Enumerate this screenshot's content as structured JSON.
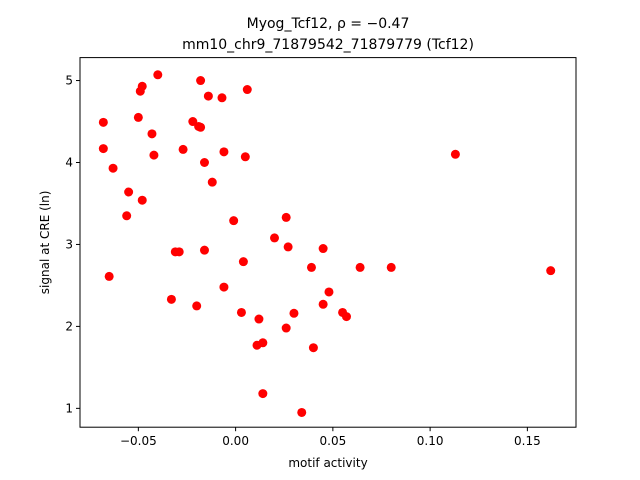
{
  "chart_data": {
    "type": "scatter",
    "title_line1": "Myog_Tcf12, ρ = −0.47",
    "title_line2": "mm10_chr9_71879542_71879779 (Tcf12)",
    "xlabel": "motif activity",
    "ylabel": "signal at CRE (ln)",
    "xlim": [
      -0.08,
      0.175
    ],
    "ylim": [
      0.77,
      5.28
    ],
    "xticks": [
      -0.05,
      0.0,
      0.05,
      0.1,
      0.15
    ],
    "xtick_labels": [
      "−0.05",
      "0.00",
      "0.05",
      "0.10",
      "0.15"
    ],
    "yticks": [
      1,
      2,
      3,
      4,
      5
    ],
    "ytick_labels": [
      "1",
      "2",
      "3",
      "4",
      "5"
    ],
    "grid": false,
    "legend": "none",
    "marker_color": "#ff0000",
    "points": [
      {
        "x": -0.068,
        "y": 4.49
      },
      {
        "x": -0.068,
        "y": 4.17
      },
      {
        "x": -0.065,
        "y": 2.61
      },
      {
        "x": -0.063,
        "y": 3.93
      },
      {
        "x": -0.056,
        "y": 3.35
      },
      {
        "x": -0.055,
        "y": 3.64
      },
      {
        "x": -0.05,
        "y": 4.55
      },
      {
        "x": -0.049,
        "y": 4.87
      },
      {
        "x": -0.048,
        "y": 4.93
      },
      {
        "x": -0.048,
        "y": 3.54
      },
      {
        "x": -0.043,
        "y": 4.35
      },
      {
        "x": -0.042,
        "y": 4.09
      },
      {
        "x": -0.04,
        "y": 5.07
      },
      {
        "x": -0.033,
        "y": 2.33
      },
      {
        "x": -0.031,
        "y": 2.91
      },
      {
        "x": -0.029,
        "y": 2.91
      },
      {
        "x": -0.027,
        "y": 4.16
      },
      {
        "x": -0.022,
        "y": 4.5
      },
      {
        "x": -0.02,
        "y": 2.25
      },
      {
        "x": -0.019,
        "y": 4.44
      },
      {
        "x": -0.018,
        "y": 4.43
      },
      {
        "x": -0.018,
        "y": 5.0
      },
      {
        "x": -0.016,
        "y": 2.93
      },
      {
        "x": -0.016,
        "y": 4.0
      },
      {
        "x": -0.014,
        "y": 4.81
      },
      {
        "x": -0.012,
        "y": 3.76
      },
      {
        "x": -0.007,
        "y": 4.79
      },
      {
        "x": -0.006,
        "y": 4.13
      },
      {
        "x": -0.006,
        "y": 2.48
      },
      {
        "x": -0.001,
        "y": 3.29
      },
      {
        "x": 0.003,
        "y": 2.17
      },
      {
        "x": 0.004,
        "y": 2.79
      },
      {
        "x": 0.005,
        "y": 4.07
      },
      {
        "x": 0.006,
        "y": 4.89
      },
      {
        "x": 0.011,
        "y": 1.77
      },
      {
        "x": 0.012,
        "y": 2.09
      },
      {
        "x": 0.014,
        "y": 1.8
      },
      {
        "x": 0.014,
        "y": 1.18
      },
      {
        "x": 0.02,
        "y": 3.08
      },
      {
        "x": 0.026,
        "y": 1.98
      },
      {
        "x": 0.026,
        "y": 3.33
      },
      {
        "x": 0.027,
        "y": 2.97
      },
      {
        "x": 0.03,
        "y": 2.16
      },
      {
        "x": 0.034,
        "y": 0.95
      },
      {
        "x": 0.039,
        "y": 2.72
      },
      {
        "x": 0.04,
        "y": 1.74
      },
      {
        "x": 0.045,
        "y": 2.95
      },
      {
        "x": 0.045,
        "y": 2.27
      },
      {
        "x": 0.048,
        "y": 2.42
      },
      {
        "x": 0.055,
        "y": 2.17
      },
      {
        "x": 0.057,
        "y": 2.12
      },
      {
        "x": 0.064,
        "y": 2.72
      },
      {
        "x": 0.08,
        "y": 2.72
      },
      {
        "x": 0.113,
        "y": 4.1
      },
      {
        "x": 0.162,
        "y": 2.68
      }
    ]
  }
}
